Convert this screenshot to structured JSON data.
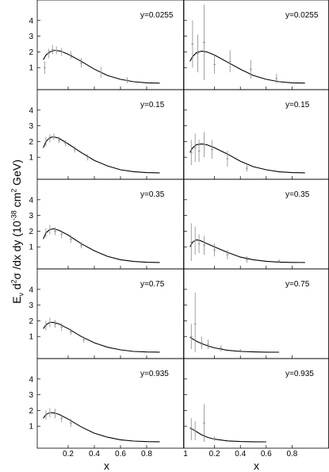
{
  "y_axis_label": {
    "p1": "E",
    "sub1": "ν",
    "p2": " d",
    "sup1": "2",
    "p3": "σ /dx dy (10",
    "sup2": "-38",
    "p4": " cm",
    "sup3": "2",
    "p5": " GeV)"
  },
  "chart_data": {
    "type": "line",
    "xlabel": "x",
    "ylabel": "Eν d²σ/dx dy (10⁻³⁸ cm² GeV)",
    "xlim": [
      0,
      1
    ],
    "ylim": [
      0,
      5
    ],
    "x_ticks": [
      "0.2",
      "0.4",
      "0.6",
      "0.8"
    ],
    "x_ticks_right_first": "1",
    "y_ticks": [
      "1",
      "2",
      "3",
      "4"
    ],
    "grid": false,
    "panels": [
      {
        "row": 0,
        "col": 0,
        "label": "y=0.0255",
        "curve": [
          [
            0.01,
            1.5
          ],
          [
            0.03,
            1.8
          ],
          [
            0.06,
            2.0
          ],
          [
            0.1,
            2.1
          ],
          [
            0.14,
            2.05
          ],
          [
            0.2,
            1.85
          ],
          [
            0.3,
            1.4
          ],
          [
            0.4,
            0.9
          ],
          [
            0.5,
            0.5
          ],
          [
            0.6,
            0.25
          ],
          [
            0.7,
            0.1
          ],
          [
            0.8,
            0.03
          ],
          [
            0.9,
            0.01
          ]
        ],
        "points": [
          [
            0.02,
            1.0,
            0.4
          ],
          [
            0.05,
            1.9,
            0.3
          ],
          [
            0.08,
            2.15,
            0.3
          ],
          [
            0.11,
            2.1,
            0.25
          ],
          [
            0.15,
            2.0,
            0.25
          ],
          [
            0.22,
            1.8,
            0.25
          ],
          [
            0.3,
            1.3,
            0.3
          ],
          [
            0.45,
            0.7,
            0.35
          ],
          [
            0.65,
            0.2,
            0.2
          ]
        ]
      },
      {
        "row": 0,
        "col": 1,
        "label": "y=0.0255",
        "curve": [
          [
            0.01,
            1.4
          ],
          [
            0.03,
            1.7
          ],
          [
            0.06,
            1.95
          ],
          [
            0.1,
            2.05
          ],
          [
            0.14,
            2.0
          ],
          [
            0.2,
            1.8
          ],
          [
            0.3,
            1.35
          ],
          [
            0.4,
            0.9
          ],
          [
            0.5,
            0.5
          ],
          [
            0.6,
            0.25
          ],
          [
            0.7,
            0.1
          ],
          [
            0.8,
            0.03
          ],
          [
            0.9,
            0.01
          ]
        ],
        "points": [
          [
            0.03,
            2.5,
            1.5
          ],
          [
            0.07,
            1.9,
            1.2
          ],
          [
            0.12,
            2.6,
            2.4
          ],
          [
            0.2,
            1.2,
            0.6
          ],
          [
            0.32,
            1.4,
            0.7
          ],
          [
            0.48,
            0.9,
            0.6
          ],
          [
            0.68,
            0.3,
            0.3
          ]
        ]
      },
      {
        "row": 1,
        "col": 0,
        "label": "y=0.15",
        "curve": [
          [
            0.01,
            1.6
          ],
          [
            0.03,
            2.0
          ],
          [
            0.06,
            2.25
          ],
          [
            0.09,
            2.3
          ],
          [
            0.13,
            2.2
          ],
          [
            0.2,
            1.85
          ],
          [
            0.3,
            1.3
          ],
          [
            0.4,
            0.8
          ],
          [
            0.5,
            0.45
          ],
          [
            0.6,
            0.2
          ],
          [
            0.7,
            0.08
          ],
          [
            0.8,
            0.02
          ],
          [
            0.9,
            0.005
          ]
        ],
        "points": [
          [
            0.03,
            2.0,
            0.3
          ],
          [
            0.06,
            2.2,
            0.25
          ],
          [
            0.09,
            2.3,
            0.2
          ],
          [
            0.13,
            2.1,
            0.2
          ],
          [
            0.18,
            1.9,
            0.2
          ],
          [
            0.25,
            1.5,
            0.2
          ],
          [
            0.35,
            1.0,
            0.2
          ]
        ]
      },
      {
        "row": 1,
        "col": 1,
        "label": "y=0.15",
        "curve": [
          [
            0.01,
            1.3
          ],
          [
            0.03,
            1.6
          ],
          [
            0.06,
            1.8
          ],
          [
            0.1,
            1.85
          ],
          [
            0.14,
            1.8
          ],
          [
            0.2,
            1.6
          ],
          [
            0.3,
            1.2
          ],
          [
            0.4,
            0.75
          ],
          [
            0.5,
            0.4
          ],
          [
            0.6,
            0.2
          ],
          [
            0.7,
            0.07
          ],
          [
            0.8,
            0.02
          ],
          [
            0.9,
            0.005
          ]
        ],
        "points": [
          [
            0.02,
            1.3,
            0.8
          ],
          [
            0.05,
            1.6,
            0.9
          ],
          [
            0.08,
            1.4,
            0.7
          ],
          [
            0.12,
            1.8,
            0.8
          ],
          [
            0.18,
            1.5,
            0.6
          ],
          [
            0.3,
            0.9,
            0.5
          ],
          [
            0.45,
            0.3,
            0.2
          ]
        ]
      },
      {
        "row": 2,
        "col": 0,
        "label": "y=0.35",
        "curve": [
          [
            0.01,
            1.5
          ],
          [
            0.03,
            1.9
          ],
          [
            0.06,
            2.1
          ],
          [
            0.09,
            2.15
          ],
          [
            0.13,
            2.05
          ],
          [
            0.2,
            1.75
          ],
          [
            0.3,
            1.2
          ],
          [
            0.4,
            0.75
          ],
          [
            0.5,
            0.4
          ],
          [
            0.6,
            0.18
          ],
          [
            0.7,
            0.07
          ],
          [
            0.8,
            0.02
          ],
          [
            0.9,
            0.005
          ]
        ],
        "points": [
          [
            0.03,
            1.9,
            0.3
          ],
          [
            0.06,
            2.1,
            0.3
          ],
          [
            0.1,
            2.0,
            0.25
          ],
          [
            0.15,
            1.8,
            0.25
          ],
          [
            0.22,
            1.5,
            0.25
          ],
          [
            0.3,
            1.1,
            0.2
          ]
        ]
      },
      {
        "row": 2,
        "col": 1,
        "label": "y=0.35",
        "curve": [
          [
            0.01,
            1.0
          ],
          [
            0.03,
            1.3
          ],
          [
            0.06,
            1.45
          ],
          [
            0.09,
            1.4
          ],
          [
            0.13,
            1.25
          ],
          [
            0.2,
            1.0
          ],
          [
            0.3,
            0.65
          ],
          [
            0.4,
            0.35
          ],
          [
            0.5,
            0.18
          ],
          [
            0.6,
            0.08
          ],
          [
            0.7,
            0.03
          ],
          [
            0.8,
            0.01
          ],
          [
            0.9,
            0.003
          ]
        ],
        "points": [
          [
            0.02,
            1.3,
            1.2
          ],
          [
            0.05,
            1.4,
            0.9
          ],
          [
            0.08,
            1.2,
            0.6
          ],
          [
            0.12,
            1.1,
            0.6
          ],
          [
            0.2,
            0.8,
            0.4
          ],
          [
            0.3,
            0.5,
            0.3
          ],
          [
            0.45,
            0.2,
            0.2
          ],
          [
            0.7,
            0.1,
            0.1
          ]
        ]
      },
      {
        "row": 3,
        "col": 0,
        "label": "y=0.75",
        "curve": [
          [
            0.01,
            1.5
          ],
          [
            0.03,
            1.75
          ],
          [
            0.06,
            1.9
          ],
          [
            0.09,
            1.9
          ],
          [
            0.13,
            1.8
          ],
          [
            0.2,
            1.5
          ],
          [
            0.3,
            1.0
          ],
          [
            0.4,
            0.6
          ],
          [
            0.5,
            0.32
          ],
          [
            0.6,
            0.15
          ],
          [
            0.7,
            0.05
          ],
          [
            0.8,
            0.015
          ],
          [
            0.9,
            0.004
          ]
        ],
        "points": [
          [
            0.03,
            1.7,
            0.3
          ],
          [
            0.06,
            1.9,
            0.3
          ],
          [
            0.1,
            1.8,
            0.25
          ],
          [
            0.15,
            1.6,
            0.25
          ],
          [
            0.22,
            1.3,
            0.2
          ],
          [
            0.32,
            0.8,
            0.2
          ]
        ]
      },
      {
        "row": 3,
        "col": 1,
        "label": "y=0.75",
        "curve": [
          [
            0.01,
            0.95
          ],
          [
            0.03,
            0.85
          ],
          [
            0.06,
            0.7
          ],
          [
            0.1,
            0.55
          ],
          [
            0.15,
            0.4
          ],
          [
            0.2,
            0.28
          ],
          [
            0.3,
            0.12
          ],
          [
            0.4,
            0.05
          ],
          [
            0.5,
            0.02
          ],
          [
            0.6,
            0.005
          ],
          [
            0.7,
            0.002
          ]
        ],
        "points": [
          [
            0.02,
            1.0,
            0.8
          ],
          [
            0.05,
            1.8,
            2.0
          ],
          [
            0.1,
            0.6,
            0.4
          ],
          [
            0.15,
            0.5,
            0.3
          ],
          [
            0.25,
            0.25,
            0.2
          ],
          [
            0.4,
            0.1,
            0.1
          ]
        ]
      },
      {
        "row": 4,
        "col": 0,
        "label": "y=0.935",
        "curve": [
          [
            0.01,
            1.5
          ],
          [
            0.03,
            1.75
          ],
          [
            0.06,
            1.85
          ],
          [
            0.09,
            1.85
          ],
          [
            0.13,
            1.75
          ],
          [
            0.2,
            1.45
          ],
          [
            0.3,
            0.95
          ],
          [
            0.4,
            0.55
          ],
          [
            0.5,
            0.3
          ],
          [
            0.6,
            0.13
          ],
          [
            0.7,
            0.05
          ],
          [
            0.8,
            0.015
          ],
          [
            0.9,
            0.004
          ]
        ],
        "points": [
          [
            0.03,
            1.7,
            0.3
          ],
          [
            0.06,
            1.85,
            0.3
          ],
          [
            0.1,
            1.8,
            0.3
          ],
          [
            0.15,
            1.5,
            0.25
          ],
          [
            0.22,
            1.2,
            0.25
          ]
        ]
      },
      {
        "row": 4,
        "col": 1,
        "label": "y=0.935",
        "curve": [
          [
            0.01,
            0.9
          ],
          [
            0.03,
            0.8
          ],
          [
            0.06,
            0.65
          ],
          [
            0.1,
            0.45
          ],
          [
            0.15,
            0.28
          ],
          [
            0.2,
            0.17
          ],
          [
            0.3,
            0.06
          ],
          [
            0.4,
            0.02
          ],
          [
            0.5,
            0.005
          ],
          [
            0.6,
            0.001
          ]
        ],
        "points": [
          [
            0.02,
            0.8,
            0.7
          ],
          [
            0.05,
            0.7,
            0.6
          ],
          [
            0.12,
            1.2,
            1.2
          ],
          [
            0.2,
            0.2,
            0.15
          ]
        ]
      }
    ]
  }
}
